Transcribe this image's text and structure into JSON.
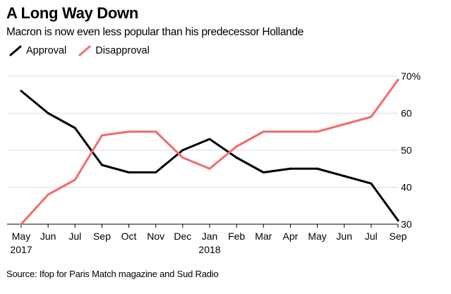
{
  "title": "A Long Way Down",
  "subtitle": "Macron is now even less popular than his predecessor Hollande",
  "source": "Source: Ifop for Paris Match magazine and Sud Radio",
  "legend": {
    "approval": "Approval",
    "disapproval": "Disapproval"
  },
  "colors": {
    "approval": "#000000",
    "disapproval": "#f26b6b",
    "grid": "#dcdcdc",
    "axis": "#000000"
  },
  "icons": {
    "approval": "slash-line-icon",
    "disapproval": "slash-line-icon"
  },
  "chart_data": {
    "type": "line",
    "title": "A Long Way Down",
    "subtitle": "Macron is now even less popular than his predecessor Hollande",
    "xlabel": "",
    "ylabel": "",
    "ylim": [
      30,
      70
    ],
    "grid": true,
    "legend_position": "top-left",
    "y_axis_side": "right",
    "y_ticks": [
      30,
      40,
      50,
      60,
      70
    ],
    "y_tick_labels": [
      "30",
      "40",
      "50",
      "60",
      "70%"
    ],
    "x_ticks": [
      {
        "label": "May",
        "sublabel": "2017"
      },
      {
        "label": "Jun"
      },
      {
        "label": "Jul"
      },
      {
        "label": "Sep"
      },
      {
        "label": "Oct"
      },
      {
        "label": "Nov"
      },
      {
        "label": "Dec"
      },
      {
        "label": "Jan",
        "sublabel": "2018"
      },
      {
        "label": "Feb"
      },
      {
        "label": "Mar"
      },
      {
        "label": "Apr"
      },
      {
        "label": "May"
      },
      {
        "label": "Jun"
      },
      {
        "label": "Jul"
      },
      {
        "label": "Sep"
      }
    ],
    "series": [
      {
        "name": "Approval",
        "key": "approval",
        "points": [
          {
            "x": 0,
            "y": 66
          },
          {
            "x": 1,
            "y": 60
          },
          {
            "x": 2,
            "y": 56
          },
          {
            "x": 3,
            "y": 46
          },
          {
            "x": 4,
            "y": 44
          },
          {
            "x": 5,
            "y": 44
          },
          {
            "x": 6,
            "y": 50
          },
          {
            "x": 7,
            "y": 53
          },
          {
            "x": 8,
            "y": 48
          },
          {
            "x": 9,
            "y": 44
          },
          {
            "x": 10,
            "y": 45
          },
          {
            "x": 11,
            "y": 45
          },
          {
            "x": 12,
            "y": 43
          },
          {
            "x": 13,
            "y": 41
          },
          {
            "x": 14,
            "y": 31
          }
        ]
      },
      {
        "name": "Disapproval",
        "key": "disapproval",
        "points": [
          {
            "x": 0,
            "y": 30
          },
          {
            "x": 1,
            "y": 38
          },
          {
            "x": 2,
            "y": 42
          },
          {
            "x": 3,
            "y": 54
          },
          {
            "x": 4,
            "y": 55
          },
          {
            "x": 5,
            "y": 55
          },
          {
            "x": 6,
            "y": 48
          },
          {
            "x": 7,
            "y": 45
          },
          {
            "x": 8,
            "y": 51
          },
          {
            "x": 9,
            "y": 55
          },
          {
            "x": 10,
            "y": 55
          },
          {
            "x": 11,
            "y": 55
          },
          {
            "x": 12,
            "y": 57
          },
          {
            "x": 13,
            "y": 59
          },
          {
            "x": 14,
            "y": 69
          }
        ]
      }
    ]
  }
}
